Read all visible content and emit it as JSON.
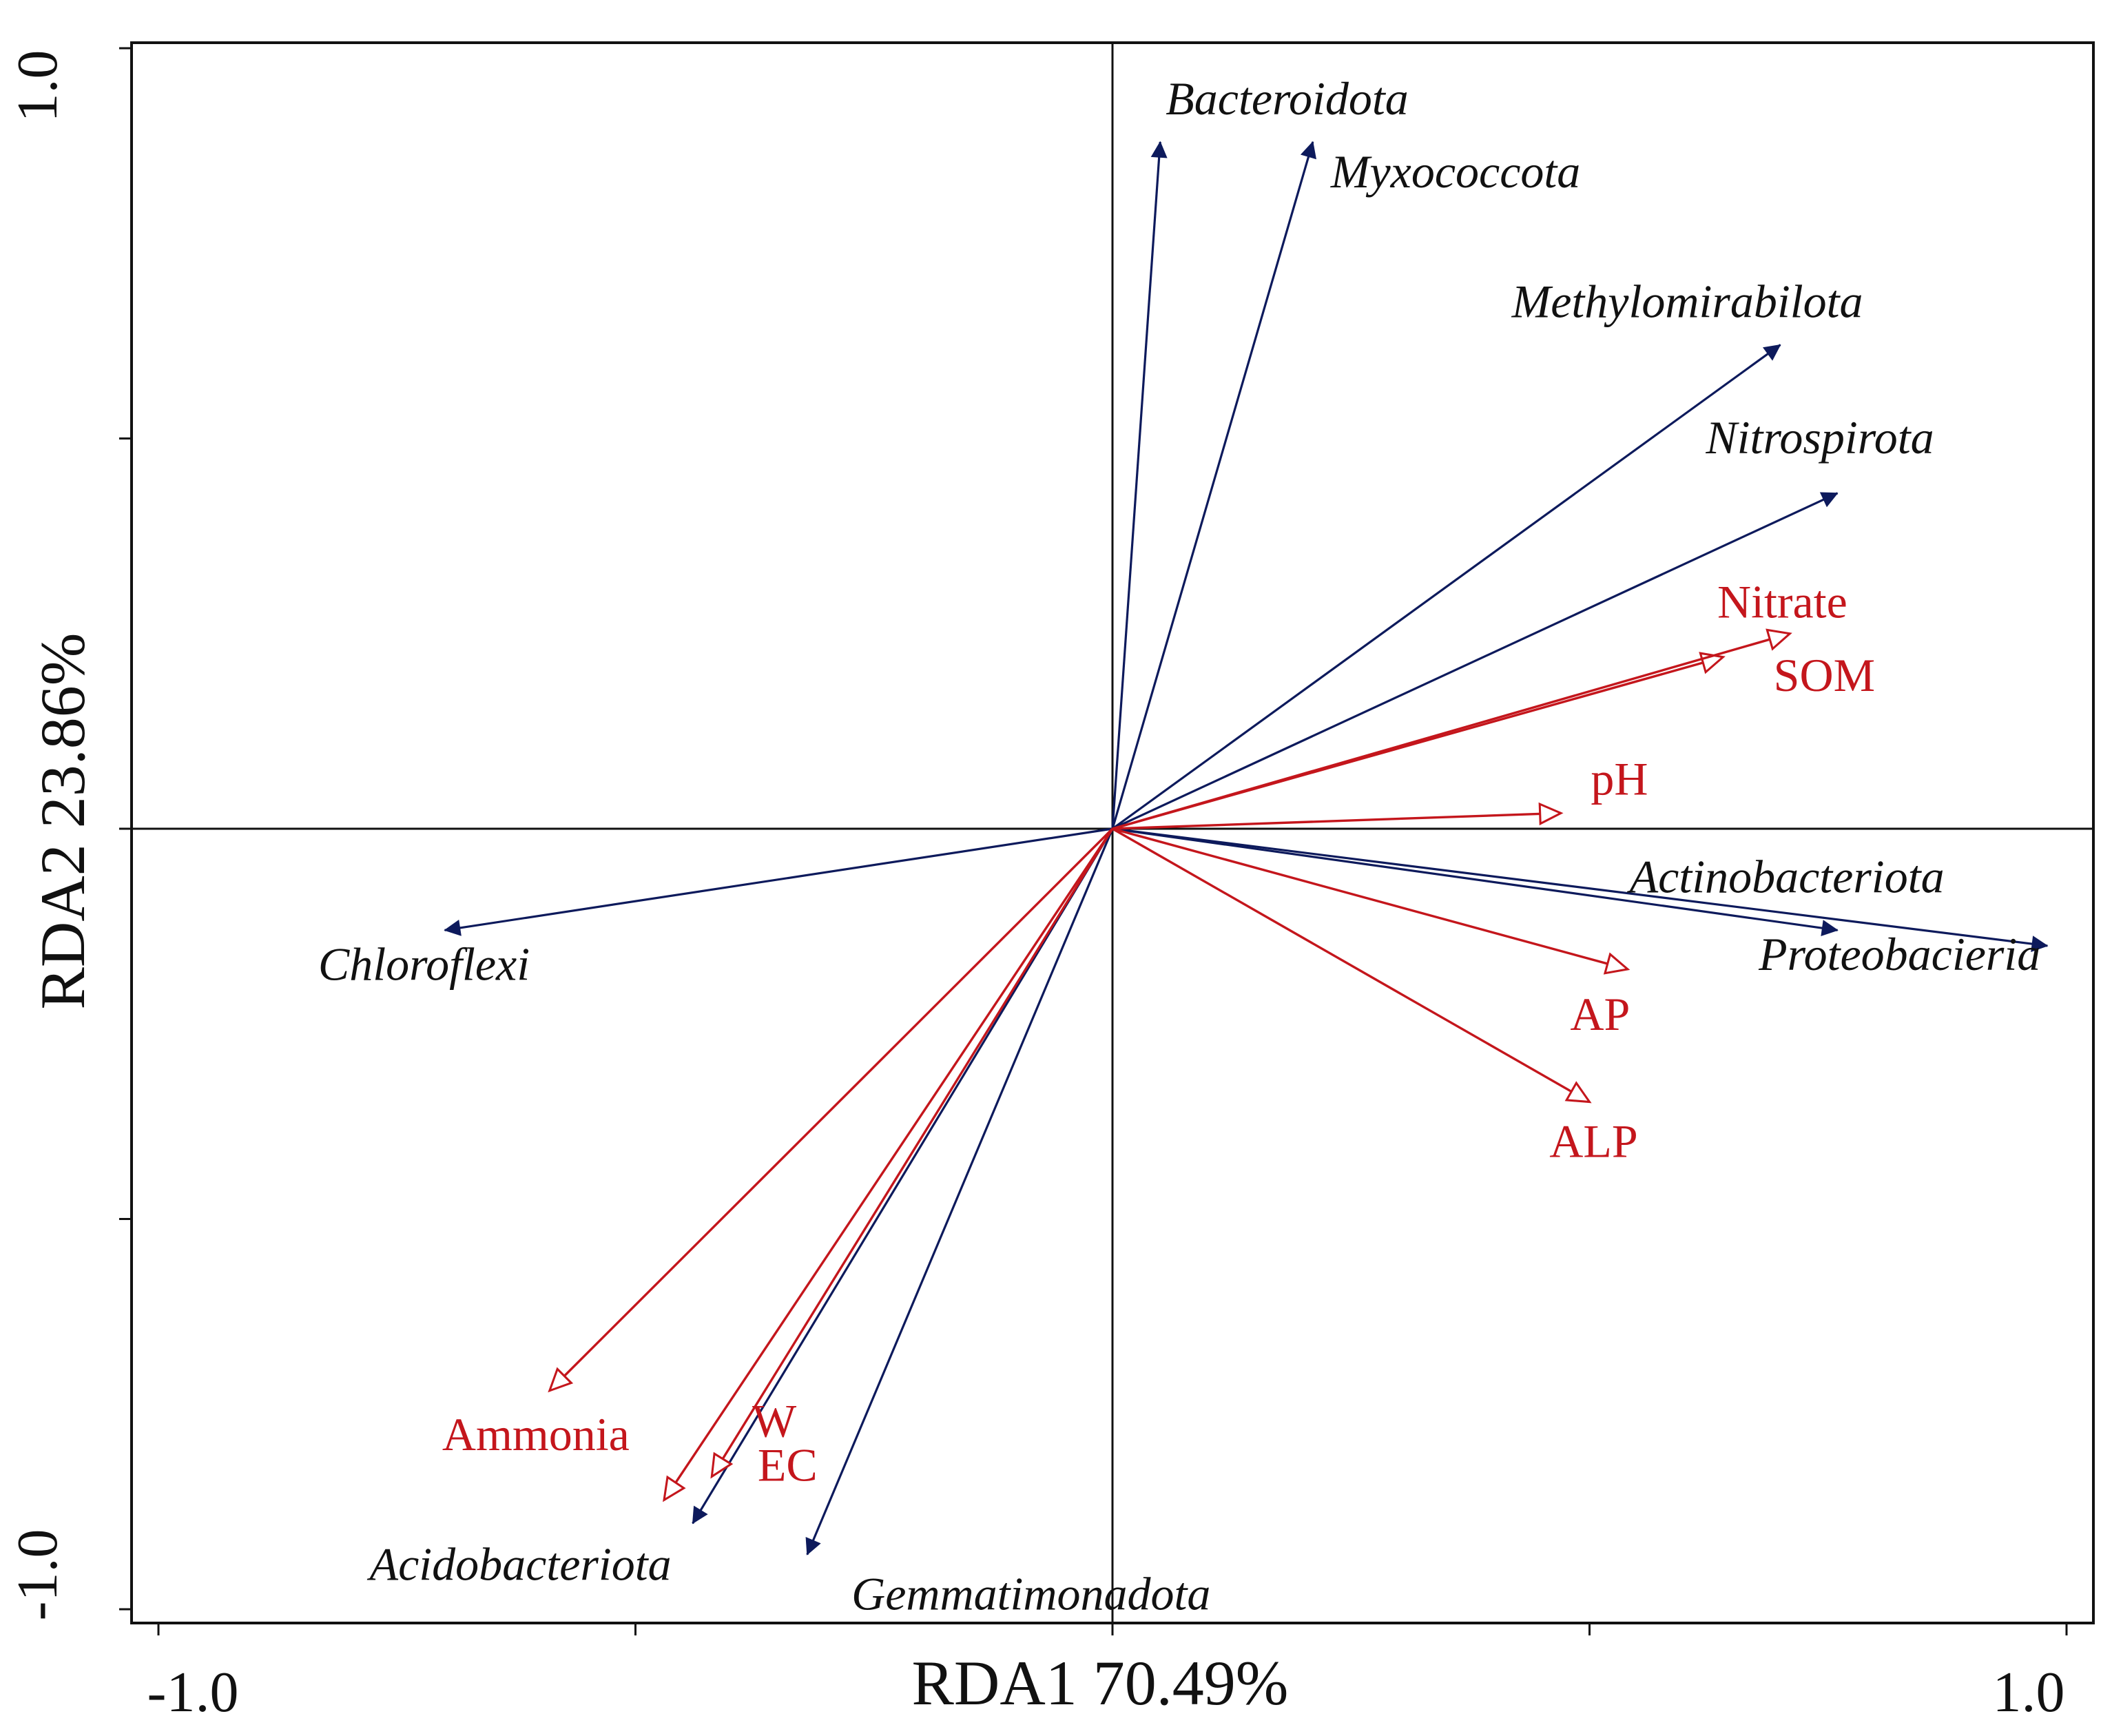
{
  "chart_data": {
    "type": "scatter",
    "subtype": "rda-biplot",
    "title": "",
    "xlabel": "RDA1 70.49%",
    "ylabel": "RDA2 23.86%",
    "xlim": [
      -1.0,
      1.0
    ],
    "ylim": [
      -1.0,
      1.0
    ],
    "x_tick_labels": [
      "-1.0",
      "1.0"
    ],
    "y_tick_labels": [
      "-1.0",
      "1.0"
    ],
    "grid": false,
    "colors": {
      "species": "#0d1a5c",
      "environment": "#c4161c",
      "axis": "#111111"
    },
    "series": [
      {
        "name": "Species",
        "arrow_style": "filled-arrow",
        "points": [
          {
            "label": "Bacteroidota",
            "x": 0.05,
            "y": 0.88
          },
          {
            "label": "Myxococcota",
            "x": 0.21,
            "y": 0.88
          },
          {
            "label": "Methylomirabilota",
            "x": 0.7,
            "y": 0.62
          },
          {
            "label": "Nitrospirota",
            "x": 0.76,
            "y": 0.43
          },
          {
            "label": "Actinobacteriota",
            "x": 0.76,
            "y": -0.13
          },
          {
            "label": "Proteobacieria",
            "x": 0.98,
            "y": -0.15
          },
          {
            "label": "Chloroflexi",
            "x": -0.7,
            "y": -0.13
          },
          {
            "label": "Acidobacteriota",
            "x": -0.44,
            "y": -0.89
          },
          {
            "label": "Gemmatimonadota",
            "x": -0.32,
            "y": -0.93
          }
        ]
      },
      {
        "name": "Environmental factors",
        "arrow_style": "open-triangle",
        "points": [
          {
            "label": "Nitrate",
            "x": 0.64,
            "y": 0.22
          },
          {
            "label": "SOM",
            "x": 0.71,
            "y": 0.25
          },
          {
            "label": "pH",
            "x": 0.47,
            "y": 0.02
          },
          {
            "label": "AP",
            "x": 0.54,
            "y": -0.18
          },
          {
            "label": "ALP",
            "x": 0.5,
            "y": -0.35
          },
          {
            "label": "Ammonia",
            "x": -0.59,
            "y": -0.72
          },
          {
            "label": "W",
            "x": -0.47,
            "y": -0.86
          },
          {
            "label": "EC",
            "x": -0.42,
            "y": -0.83
          }
        ]
      }
    ]
  }
}
